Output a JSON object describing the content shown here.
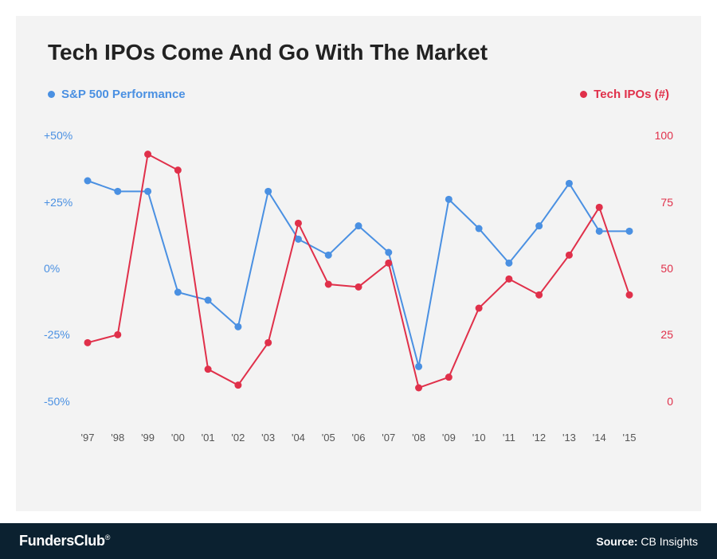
{
  "chart": {
    "type": "line",
    "title": "Tech IPOs Come And Go With The Market",
    "background_color": "#f3f3f3",
    "frame_background": "#ffffff",
    "x_categories": [
      "'97",
      "'98",
      "'99",
      "'00",
      "'01",
      "'02",
      "'03",
      "'04",
      "'05",
      "'06",
      "'07",
      "'08",
      "'09",
      "'10",
      "'11",
      "'12",
      "'13",
      "'14",
      "'15"
    ],
    "x_label_color": "#555555",
    "x_fontsize": 13,
    "title_fontsize": 28,
    "title_color": "#222222",
    "left_axis": {
      "label": "S&P 500 Performance",
      "color": "#4a90e2",
      "ticks": [
        {
          "v": 50,
          "label": "+50%"
        },
        {
          "v": 25,
          "label": "+25%"
        },
        {
          "v": 0,
          "label": "0%"
        },
        {
          "v": -25,
          "label": "-25%"
        },
        {
          "v": -50,
          "label": "-50%"
        }
      ],
      "ylim": [
        -60,
        60
      ],
      "fontsize": 14
    },
    "right_axis": {
      "label": "Tech IPOs (#)",
      "color": "#e0304a",
      "ticks": [
        {
          "v": 100,
          "label": "100"
        },
        {
          "v": 75,
          "label": "75"
        },
        {
          "v": 50,
          "label": "50"
        },
        {
          "v": 25,
          "label": "25"
        },
        {
          "v": 0,
          "label": "0"
        }
      ],
      "ylim": [
        -10,
        110
      ],
      "fontsize": 14
    },
    "series": [
      {
        "name": "S&P 500 Performance",
        "axis": "left",
        "color": "#4a90e2",
        "line_width": 2,
        "marker": "circle",
        "marker_size": 4.5,
        "values": [
          33,
          29,
          29,
          -9,
          -12,
          -22,
          29,
          11,
          5,
          16,
          6,
          -37,
          26,
          15,
          2,
          16,
          32,
          14,
          14
        ]
      },
      {
        "name": "Tech IPOs (#)",
        "axis": "right",
        "color": "#e0304a",
        "line_width": 2,
        "marker": "circle",
        "marker_size": 4.5,
        "values": [
          22,
          25,
          93,
          87,
          12,
          6,
          22,
          67,
          44,
          43,
          52,
          5,
          9,
          35,
          46,
          40,
          55,
          73,
          40
        ]
      }
    ],
    "legend": {
      "fontsize": 15,
      "dot_size": 9
    }
  },
  "footer": {
    "background_color": "#0b2130",
    "text_color": "#ffffff",
    "brand": "FundersClub",
    "brand_suffix": "®",
    "source_label": "Source:",
    "source_value": "CB Insights",
    "fontsize": 14
  }
}
